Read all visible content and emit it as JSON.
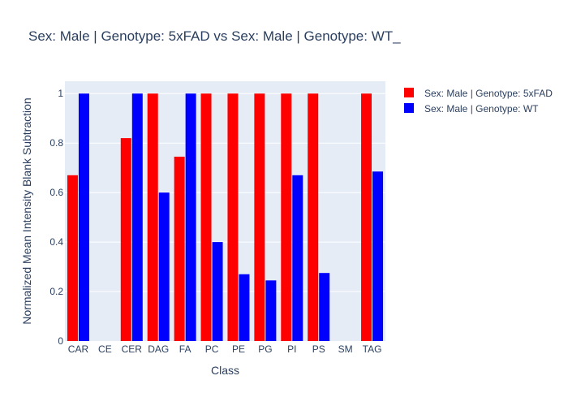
{
  "chart_data": {
    "type": "bar",
    "title": "Sex: Male | Genotype: 5xFAD vs Sex: Male | Genotype: WT_",
    "xlabel": "Class",
    "ylabel": "Normalized Mean Intensity Blank Subtraction",
    "categories": [
      "CAR",
      "CE",
      "CER",
      "DAG",
      "FA",
      "PC",
      "PE",
      "PG",
      "PI",
      "PS",
      "SM",
      "TAG"
    ],
    "ylim": [
      0,
      1.05
    ],
    "yticks": [
      "0",
      "0.2",
      "0.4",
      "0.6",
      "0.8",
      "1"
    ],
    "grid": true,
    "legend_position": "top-right",
    "series": [
      {
        "name": "Sex: Male | Genotype: 5xFAD",
        "color": "#ff0000",
        "values": [
          0.67,
          null,
          0.82,
          1,
          0.745,
          1,
          1,
          1,
          1,
          1,
          null,
          1
        ]
      },
      {
        "name": "Sex: Male | Genotype: WT",
        "color": "#0000ff",
        "values": [
          1,
          null,
          1,
          0.6,
          1,
          0.4,
          0.27,
          0.245,
          0.67,
          0.275,
          null,
          0.685
        ]
      }
    ]
  }
}
